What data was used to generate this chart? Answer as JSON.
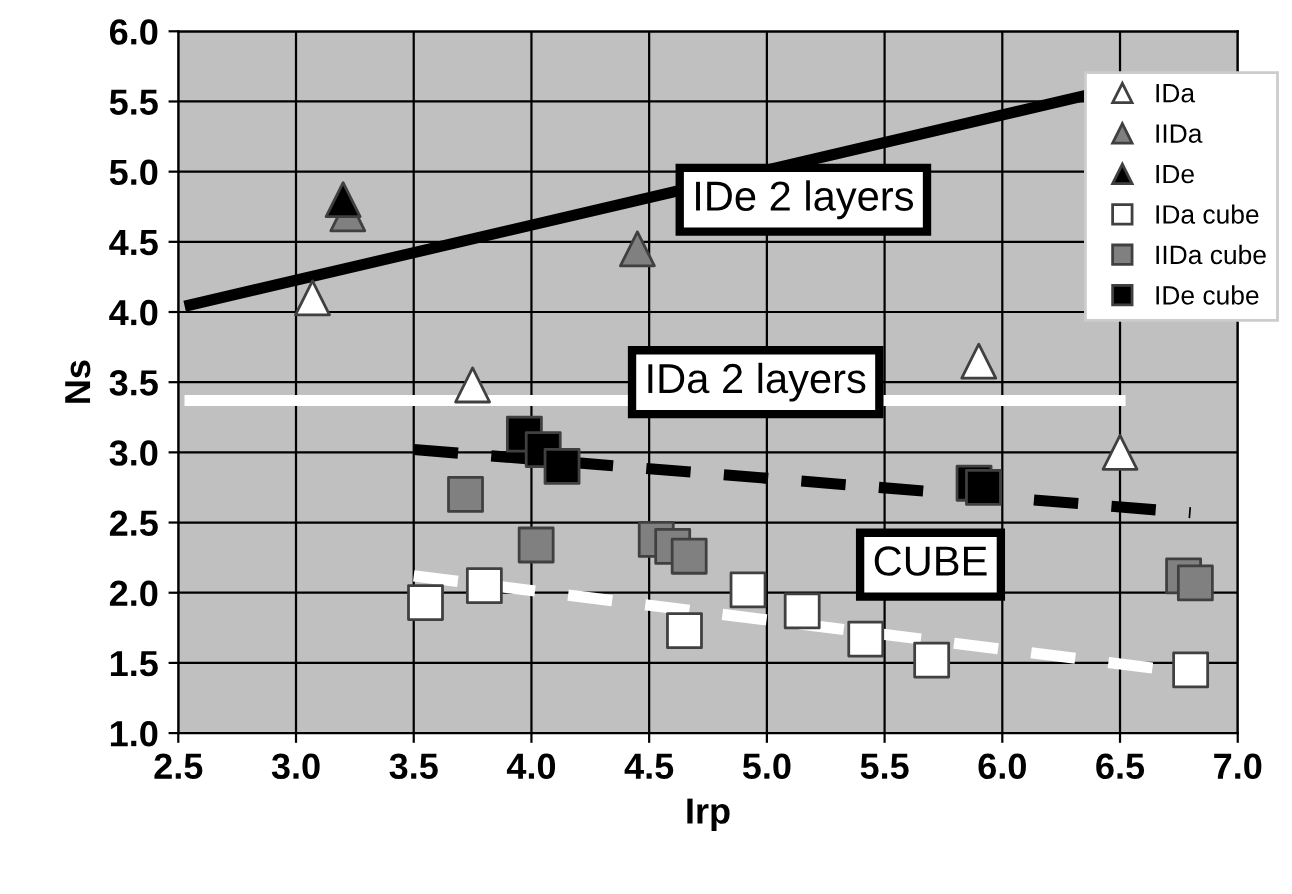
{
  "chart_data": {
    "type": "scatter",
    "xlabel": "Irp",
    "ylabel": "Ns",
    "xlim": [
      2.5,
      7.0
    ],
    "ylim": [
      1.0,
      6.0
    ],
    "xticks": [
      {
        "value": 2.5,
        "label": "2.5"
      },
      {
        "value": 3.0,
        "label": "3.0"
      },
      {
        "value": 3.5,
        "label": "3.5"
      },
      {
        "value": 4.0,
        "label": "4.0"
      },
      {
        "value": 4.5,
        "label": "4.5"
      },
      {
        "value": 5.0,
        "label": "5.0"
      },
      {
        "value": 5.5,
        "label": "5.5"
      },
      {
        "value": 6.0,
        "label": "6.0"
      },
      {
        "value": 6.5,
        "label": "6.5"
      },
      {
        "value": 7.0,
        "label": "7.0"
      }
    ],
    "yticks": [
      {
        "value": 1.0,
        "label": "1.0"
      },
      {
        "value": 1.5,
        "label": "1.5"
      },
      {
        "value": 2.0,
        "label": "2.0"
      },
      {
        "value": 2.5,
        "label": "2.5"
      },
      {
        "value": 3.0,
        "label": "3.0"
      },
      {
        "value": 3.5,
        "label": "3.5"
      },
      {
        "value": 4.0,
        "label": "4.0"
      },
      {
        "value": 4.5,
        "label": "4.5"
      },
      {
        "value": 5.0,
        "label": "5.0"
      },
      {
        "value": 5.5,
        "label": "5.5"
      },
      {
        "value": 6.0,
        "label": "6.0"
      }
    ],
    "grid": true,
    "legend": "top right",
    "series": [
      {
        "type": "line",
        "color": "#000000",
        "line_style": "solid",
        "x": [
          2.55,
          6.5
        ],
        "values": [
          4.05,
          5.6
        ]
      },
      {
        "type": "line",
        "color": "#ffffff",
        "line_style": "solid",
        "x": [
          2.55,
          6.5
        ],
        "values": [
          3.37,
          3.37
        ]
      },
      {
        "type": "line",
        "color": "#000000",
        "line_style": "dashed",
        "x": [
          3.5,
          6.8
        ],
        "values": [
          3.02,
          2.57
        ]
      },
      {
        "type": "line",
        "color": "#ffffff",
        "line_style": "dashed",
        "x": [
          3.5,
          6.8
        ],
        "values": [
          2.12,
          1.43
        ]
      },
      {
        "name": "IDa",
        "marker": "triangle",
        "color": "#ffffff",
        "x": [
          3.07,
          3.75,
          5.9,
          6.5
        ],
        "values": [
          4.1,
          3.48,
          3.65,
          3.0
        ]
      },
      {
        "name": "IIDa",
        "marker": "triangle",
        "color": "#808080",
        "x": [
          3.22,
          4.45
        ],
        "values": [
          4.7,
          4.45
        ]
      },
      {
        "name": "IDe",
        "marker": "triangle",
        "color": "#000000",
        "x": [
          3.2
        ],
        "values": [
          4.8
        ]
      },
      {
        "name": "IDa cube",
        "marker": "square",
        "color": "#ffffff",
        "x": [
          3.55,
          3.8,
          4.65,
          4.92,
          5.15,
          5.42,
          5.7,
          6.8
        ],
        "values": [
          1.93,
          2.05,
          1.73,
          2.02,
          1.87,
          1.67,
          1.52,
          1.45
        ]
      },
      {
        "name": "IIDa cube",
        "marker": "square",
        "color": "#808080",
        "x": [
          3.72,
          4.02,
          4.53,
          4.6,
          4.67,
          6.77,
          6.82
        ],
        "values": [
          2.7,
          2.34,
          2.38,
          2.33,
          2.26,
          2.12,
          2.07
        ]
      },
      {
        "name": "IDe cube",
        "marker": "square",
        "color": "#000000",
        "x": [
          3.97,
          4.05,
          4.13,
          5.88,
          5.92
        ],
        "values": [
          3.13,
          3.02,
          2.9,
          2.78,
          2.75
        ]
      }
    ],
    "annotations": [
      "IDe 2 layers",
      "IDa 2 layers",
      "CUBE"
    ]
  }
}
